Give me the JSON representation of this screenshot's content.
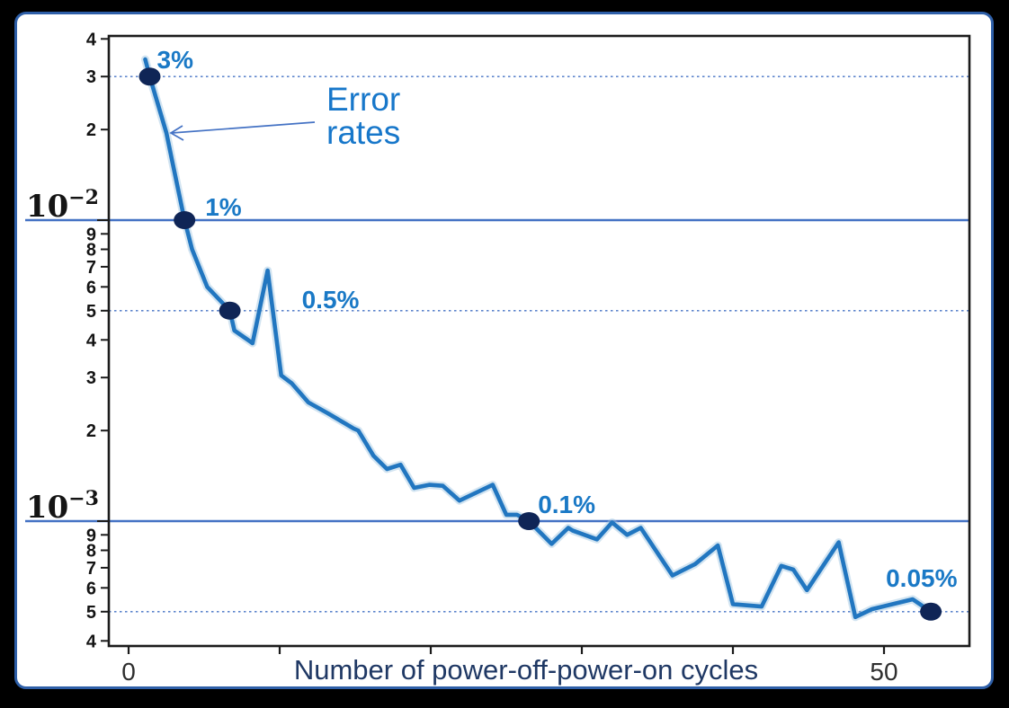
{
  "figure": {
    "background": "#000000",
    "panel_background": "#ffffff",
    "panel_border_color": "#2e5fa8"
  },
  "callout": {
    "text": "Error rates",
    "lines": [
      "Error",
      "rates"
    ],
    "color": "#1777ca"
  },
  "chart_data": {
    "type": "line",
    "title": "",
    "xlabel": "Number of power-off-power-on cycles",
    "ylabel": "",
    "y_scale": "log",
    "xlim": [
      -1.4,
      55.6
    ],
    "ylim": [
      0.00038,
      0.042
    ],
    "grid": "off",
    "legend": "none",
    "colors": {
      "line": "#2176c0",
      "line_halo": "#9cc3e0",
      "marker": "#0f2556",
      "annotation": "#1a79c6",
      "reference_line": "#4472c4",
      "axis_text": "#141414",
      "x_tick_text": "#2e2e2e",
      "xlabel_text": "#1f3864",
      "frame": "#1b1b1b"
    },
    "x_axis": {
      "ticks": [
        {
          "value": 0,
          "label": "0"
        },
        {
          "value": 10,
          "label": ""
        },
        {
          "value": 20,
          "label": ""
        },
        {
          "value": 30,
          "label": ""
        },
        {
          "value": 40,
          "label": ""
        },
        {
          "value": 50,
          "label": "50"
        }
      ]
    },
    "y_axis": {
      "ticks": [
        {
          "value": 0.04,
          "label": "4",
          "kind": "minor"
        },
        {
          "value": 0.03,
          "label": "3",
          "kind": "minor"
        },
        {
          "value": 0.02,
          "label": "2",
          "kind": "minor"
        },
        {
          "value": 0.01,
          "label": "10",
          "exp": "−2",
          "kind": "decade"
        },
        {
          "value": 0.009,
          "label": "9",
          "kind": "minor"
        },
        {
          "value": 0.008,
          "label": "8",
          "kind": "minor"
        },
        {
          "value": 0.007,
          "label": "7",
          "kind": "minor"
        },
        {
          "value": 0.006,
          "label": "6",
          "kind": "minor"
        },
        {
          "value": 0.005,
          "label": "5",
          "kind": "minor"
        },
        {
          "value": 0.004,
          "label": "4",
          "kind": "minor"
        },
        {
          "value": 0.003,
          "label": "3",
          "kind": "minor"
        },
        {
          "value": 0.002,
          "label": "2",
          "kind": "minor"
        },
        {
          "value": 0.001,
          "label": "10",
          "exp": "−3",
          "kind": "decade"
        },
        {
          "value": 0.0009,
          "label": "9",
          "kind": "minor"
        },
        {
          "value": 0.0008,
          "label": "8",
          "kind": "minor"
        },
        {
          "value": 0.0007,
          "label": "7",
          "kind": "minor"
        },
        {
          "value": 0.0006,
          "label": "6",
          "kind": "minor"
        },
        {
          "value": 0.0005,
          "label": "5",
          "kind": "minor"
        },
        {
          "value": 0.0004,
          "label": "4",
          "kind": "minor"
        }
      ]
    },
    "reference_lines": {
      "solid": [
        0.01,
        0.001
      ],
      "dotted": [
        0.03,
        0.005,
        0.0005
      ]
    },
    "series": [
      {
        "name": "Error rates",
        "color": "#2176c0",
        "points": [
          [
            1.1,
            0.0342
          ],
          [
            1.4,
            0.03
          ],
          [
            2.5,
            0.0195
          ],
          [
            2.9,
            0.0156
          ],
          [
            3.7,
            0.01
          ],
          [
            4.2,
            0.008
          ],
          [
            5.2,
            0.006
          ],
          [
            6.7,
            0.005
          ],
          [
            7.0,
            0.0043
          ],
          [
            7.9,
            0.004
          ],
          [
            8.2,
            0.0039
          ],
          [
            9.2,
            0.0068
          ],
          [
            10.1,
            0.00305
          ],
          [
            10.8,
            0.00287
          ],
          [
            11.9,
            0.00248
          ],
          [
            13.2,
            0.00228
          ],
          [
            14.9,
            0.00203
          ],
          [
            15.2,
            0.002
          ],
          [
            16.2,
            0.00165
          ],
          [
            17.1,
            0.00149
          ],
          [
            18.0,
            0.00154
          ],
          [
            18.9,
            0.00129
          ],
          [
            19.9,
            0.00132
          ],
          [
            20.8,
            0.00131
          ],
          [
            21.9,
            0.00117
          ],
          [
            24.1,
            0.00132
          ],
          [
            25.0,
            0.00105
          ],
          [
            25.7,
            0.00105
          ],
          [
            26.5,
            0.001
          ],
          [
            28.0,
            0.00084
          ],
          [
            29.1,
            0.00095
          ],
          [
            29.4,
            0.00093
          ],
          [
            31.0,
            0.00087
          ],
          [
            32.0,
            0.00099
          ],
          [
            33.0,
            0.0009
          ],
          [
            33.9,
            0.00095
          ],
          [
            36.0,
            0.00066
          ],
          [
            37.5,
            0.00072
          ],
          [
            39.0,
            0.00083
          ],
          [
            40.0,
            0.00053
          ],
          [
            41.9,
            0.00052
          ],
          [
            43.2,
            0.00071
          ],
          [
            44.0,
            0.00069
          ],
          [
            44.9,
            0.00059
          ],
          [
            47.0,
            0.00085
          ],
          [
            48.1,
            0.00048
          ],
          [
            49.2,
            0.00051
          ],
          [
            51.9,
            0.00055
          ],
          [
            53.1,
            0.0005
          ]
        ]
      }
    ],
    "markers": [
      {
        "cycle": 1.4,
        "rate": 0.03,
        "label": "3%",
        "label_offset": [
          8,
          -9
        ]
      },
      {
        "cycle": 3.7,
        "rate": 0.01,
        "label": "1%",
        "label_offset": [
          23,
          -5
        ]
      },
      {
        "cycle": 6.7,
        "rate": 0.005,
        "label": "0.5%",
        "label_offset": [
          80,
          -3
        ]
      },
      {
        "cycle": 26.5,
        "rate": 0.001,
        "label": "0.1%",
        "label_offset": [
          10,
          -9
        ]
      },
      {
        "cycle": 53.1,
        "rate": 0.0005,
        "label": "0.05%",
        "label_offset": [
          -50,
          -28
        ]
      }
    ]
  }
}
